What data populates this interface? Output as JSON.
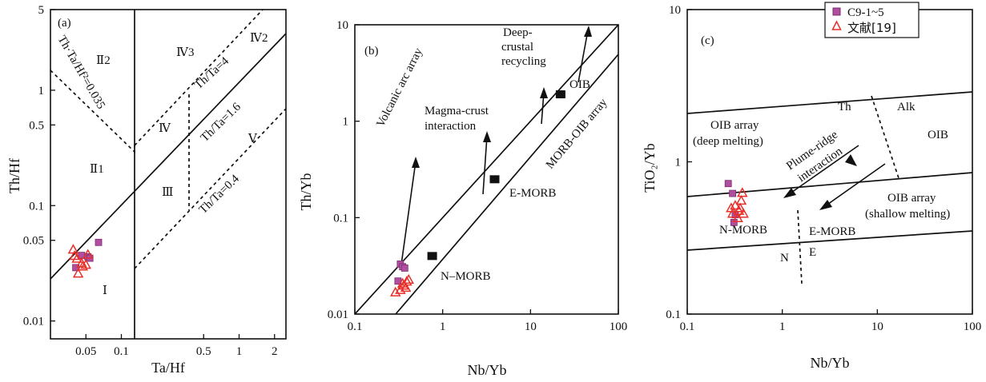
{
  "colors": {
    "sample": "#b04ea0",
    "sample_stroke": "#7a2d6e",
    "literature": "#e8302a",
    "ink": "#111111"
  },
  "legend": {
    "entries": [
      "C9-1~5",
      "文献[19]"
    ]
  },
  "chart_data": [
    {
      "id": "a",
      "type": "scatter",
      "panel_label": "(a)",
      "xlabel": "Ta/Hf",
      "ylabel": "Th/Hf",
      "xscale": "log",
      "yscale": "log",
      "xlim": [
        0.025,
        2.5
      ],
      "ylim": [
        0.007,
        5
      ],
      "xticks": [
        0.05,
        0.1,
        0.5,
        1,
        2
      ],
      "xtick_labels": [
        "0.05",
        "0.1",
        "0.5",
        "1",
        "2"
      ],
      "yticks": [
        0.01,
        0.05,
        0.1,
        0.5,
        1,
        5
      ],
      "ytick_labels": [
        "0.01",
        "0.05",
        "0.1",
        "0.5",
        "1",
        "5"
      ],
      "region_labels": [
        "Ⅱ2",
        "Ⅳ3",
        "Ⅳ2",
        "Ⅳ",
        "Ⅴ",
        "Ⅲ",
        "Ⅱ1",
        "Ⅰ"
      ],
      "line_labels": [
        "Th·Ta/Hf²=0.035",
        "Th/Ta=4",
        "Th/Ta=1.6",
        "Th/Ta=0.4"
      ],
      "series": [
        {
          "name": "C9-1~5",
          "points": [
            [
              0.046,
              0.037
            ],
            [
              0.052,
              0.036
            ],
            [
              0.054,
              0.035
            ],
            [
              0.041,
              0.029
            ],
            [
              0.064,
              0.048
            ]
          ]
        },
        {
          "name": "文献[19]",
          "points": [
            [
              0.039,
              0.042
            ],
            [
              0.04,
              0.037
            ],
            [
              0.042,
              0.035
            ],
            [
              0.047,
              0.03
            ],
            [
              0.05,
              0.031
            ],
            [
              0.052,
              0.038
            ],
            [
              0.043,
              0.026
            ],
            [
              0.046,
              0.032
            ]
          ]
        }
      ]
    },
    {
      "id": "b",
      "type": "scatter",
      "panel_label": "(b)",
      "xlabel": "Nb/Yb",
      "ylabel": "Th/Yb",
      "xscale": "log",
      "yscale": "log",
      "xlim": [
        0.1,
        100
      ],
      "ylim": [
        0.01,
        10
      ],
      "xticks": [
        0.1,
        1,
        10,
        100
      ],
      "xtick_labels": [
        "0.1",
        "1",
        "10",
        "100"
      ],
      "yticks": [
        0.01,
        0.1,
        1,
        10
      ],
      "ytick_labels": [
        "0.01",
        "0.1",
        "1",
        "10"
      ],
      "annotations": [
        "Volcanic arc array",
        "Magma-crust",
        "interaction",
        "Deep-",
        "crustal",
        "recycling",
        "OIB",
        "MORB-OIB array",
        "E-MORB",
        "N–MORB"
      ],
      "reference_points": [
        {
          "label": "N-MORB",
          "x": 0.76,
          "y": 0.04
        },
        {
          "label": "E-MORB",
          "x": 3.9,
          "y": 0.25
        },
        {
          "label": "OIB",
          "x": 22,
          "y": 1.9
        }
      ],
      "series": [
        {
          "name": "C9-1~5",
          "points": [
            [
              0.33,
              0.033
            ],
            [
              0.35,
              0.031
            ],
            [
              0.37,
              0.03
            ],
            [
              0.31,
              0.022
            ]
          ]
        },
        {
          "name": "文献[19]",
          "points": [
            [
              0.29,
              0.017
            ],
            [
              0.33,
              0.018
            ],
            [
              0.36,
              0.02
            ],
            [
              0.39,
              0.022
            ],
            [
              0.41,
              0.023
            ],
            [
              0.35,
              0.021
            ],
            [
              0.38,
              0.019
            ]
          ]
        }
      ]
    },
    {
      "id": "c",
      "type": "scatter",
      "panel_label": "(c)",
      "xlabel": "Nb/Yb",
      "ylabel": "TiO₂/Yb",
      "xscale": "log",
      "yscale": "log",
      "xlim": [
        0.1,
        100
      ],
      "ylim": [
        0.1,
        10
      ],
      "xticks": [
        0.1,
        1,
        10,
        100
      ],
      "xtick_labels": [
        "0.1",
        "1",
        "10",
        "100"
      ],
      "yticks": [
        0.1,
        1,
        10
      ],
      "ytick_labels": [
        "0.1",
        "1",
        "10"
      ],
      "annotations": [
        "Th",
        "Alk",
        "OIB array",
        "(deep melting)",
        "Plume-ridge",
        "interaction",
        "OIB",
        "OIB array",
        "(shallow melting)",
        "N-MORB",
        "E-MORB",
        "N",
        "E"
      ],
      "series": [
        {
          "name": "C9-1~5",
          "points": [
            [
              0.27,
              0.72
            ],
            [
              0.3,
              0.62
            ],
            [
              0.32,
              0.45
            ],
            [
              0.31,
              0.4
            ]
          ]
        },
        {
          "name": "文献[19]",
          "points": [
            [
              0.29,
              0.5
            ],
            [
              0.32,
              0.52
            ],
            [
              0.35,
              0.48
            ],
            [
              0.37,
              0.56
            ],
            [
              0.38,
              0.63
            ],
            [
              0.39,
              0.46
            ],
            [
              0.34,
              0.43
            ],
            [
              0.3,
              0.46
            ],
            [
              0.36,
              0.5
            ]
          ]
        }
      ]
    }
  ]
}
